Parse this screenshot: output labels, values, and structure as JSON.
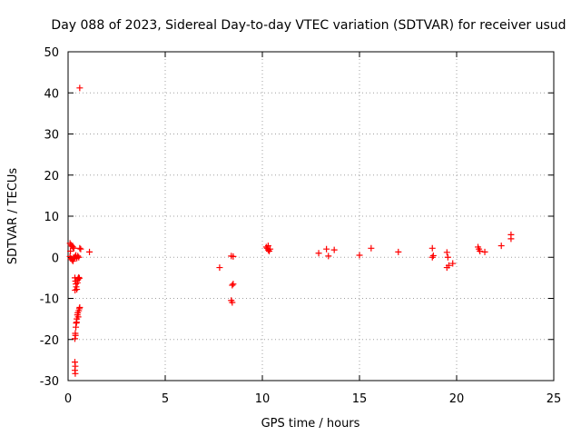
{
  "chart_data": {
    "type": "scatter",
    "title": "Day 088 of 2023, Sidereal Day-to-day VTEC variation (SDTVAR) for receiver usud",
    "xlabel": "GPS time / hours",
    "ylabel": "SDTVAR / TECUs",
    "xlim": [
      0,
      25
    ],
    "ylim": [
      -30,
      50
    ],
    "xticks": [
      0,
      5,
      10,
      15,
      20,
      25
    ],
    "yticks": [
      -30,
      -20,
      -10,
      0,
      10,
      20,
      30,
      40,
      50
    ],
    "grid": true,
    "marker": "plus",
    "color": "#ff0000",
    "series": [
      {
        "name": "SDTVAR",
        "points": [
          [
            0.1,
            3.4
          ],
          [
            0.15,
            3.0
          ],
          [
            0.2,
            2.7
          ],
          [
            0.25,
            2.5
          ],
          [
            0.3,
            2.2
          ],
          [
            0.12,
            1.5
          ],
          [
            0.1,
            0.2
          ],
          [
            0.15,
            -0.3
          ],
          [
            0.2,
            -0.6
          ],
          [
            0.25,
            -0.9
          ],
          [
            0.3,
            -0.4
          ],
          [
            0.35,
            0.1
          ],
          [
            0.4,
            0.5
          ],
          [
            0.45,
            -0.2
          ],
          [
            0.5,
            0.3
          ],
          [
            0.55,
            0.0
          ],
          [
            0.6,
            2.2
          ],
          [
            0.65,
            2.0
          ],
          [
            0.6,
            41.2
          ],
          [
            1.1,
            1.3
          ],
          [
            0.35,
            -5.0
          ],
          [
            0.38,
            -5.8
          ],
          [
            0.4,
            -6.5
          ],
          [
            0.42,
            -7.2
          ],
          [
            0.45,
            -7.8
          ],
          [
            0.48,
            -6.2
          ],
          [
            0.5,
            -5.5
          ],
          [
            0.52,
            -5.2
          ],
          [
            0.55,
            -4.9
          ],
          [
            0.58,
            -5.1
          ],
          [
            0.36,
            -8.0
          ],
          [
            0.35,
            -19.8
          ],
          [
            0.37,
            -18.5
          ],
          [
            0.4,
            -17.0
          ],
          [
            0.42,
            -16.0
          ],
          [
            0.45,
            -15.0
          ],
          [
            0.48,
            -14.0
          ],
          [
            0.5,
            -13.5
          ],
          [
            0.55,
            -13.0
          ],
          [
            0.58,
            -12.5
          ],
          [
            0.6,
            -12.2
          ],
          [
            0.44,
            -15.8
          ],
          [
            0.52,
            -14.5
          ],
          [
            0.38,
            -19.0
          ],
          [
            0.35,
            -25.5
          ],
          [
            0.37,
            -26.5
          ],
          [
            0.35,
            -27.5
          ],
          [
            0.37,
            -28.3
          ],
          [
            7.8,
            -2.5
          ],
          [
            8.4,
            0.3
          ],
          [
            8.5,
            0.2
          ],
          [
            8.45,
            -6.8
          ],
          [
            8.5,
            -6.5
          ],
          [
            8.4,
            -10.5
          ],
          [
            8.45,
            -11.0
          ],
          [
            10.2,
            2.5
          ],
          [
            10.25,
            2.2
          ],
          [
            10.3,
            1.8
          ],
          [
            10.35,
            1.5
          ],
          [
            10.3,
            2.8
          ],
          [
            10.4,
            2.0
          ],
          [
            12.9,
            1.0
          ],
          [
            13.3,
            2.0
          ],
          [
            13.4,
            0.3
          ],
          [
            13.7,
            1.8
          ],
          [
            15.0,
            0.5
          ],
          [
            15.6,
            2.2
          ],
          [
            17.0,
            1.3
          ],
          [
            18.75,
            2.2
          ],
          [
            18.8,
            0.4
          ],
          [
            18.75,
            0.0
          ],
          [
            19.5,
            1.2
          ],
          [
            19.55,
            0.0
          ],
          [
            19.5,
            -2.5
          ],
          [
            19.6,
            -2.0
          ],
          [
            19.8,
            -1.5
          ],
          [
            21.1,
            2.5
          ],
          [
            21.15,
            2.0
          ],
          [
            21.2,
            1.5
          ],
          [
            21.45,
            1.3
          ],
          [
            22.3,
            2.8
          ],
          [
            22.8,
            4.5
          ],
          [
            22.8,
            5.5
          ]
        ]
      }
    ]
  }
}
